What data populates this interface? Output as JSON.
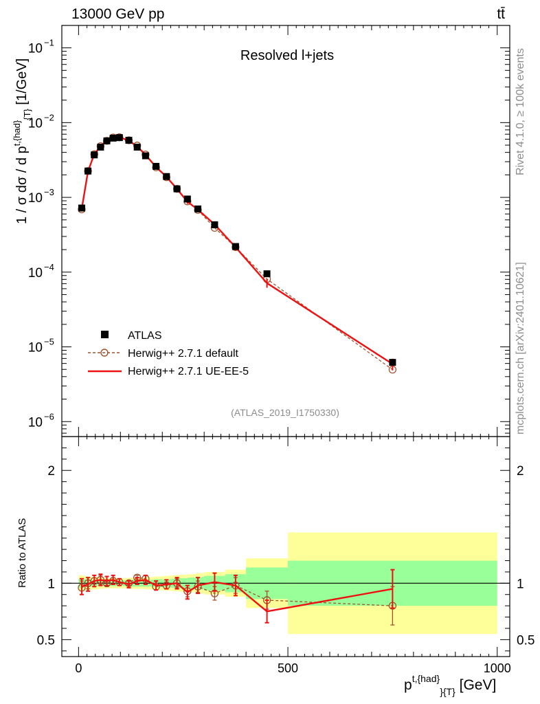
{
  "header": {
    "energy": "13000 GeV pp",
    "process": "tt̄"
  },
  "side": {
    "rivet": "Rivet 4.1.0, ≥ 100k events",
    "mcplots": "mcplots.cern.ch [arXiv:2401.10621]"
  },
  "chart_data": {
    "type": "scatter",
    "title": "Resolved l+jets",
    "analysis_id": "(ATLAS_2019_I1750330)",
    "xlabel": "p^{t,{had}}_{T} [GeV]",
    "ylabel_main": "1 / σ dσ / d p^{t,{had}}_{T} [1/GeV]",
    "ylabel_ratio": "Ratio to ATLAS",
    "xlim": [
      -40,
      1030
    ],
    "ylim_main_log10": [
      -6.2,
      -0.7
    ],
    "ylim_ratio": [
      0.35,
      2.3
    ],
    "x_ticks": [
      "0",
      "500",
      "1000"
    ],
    "y_ticks_main": [
      "10^{-1}",
      "10^{-2}",
      "10^{-3}",
      "10^{-4}",
      "10^{-5}",
      "10^{-6}"
    ],
    "y_ticks_ratio": [
      "0.5",
      "1",
      "2"
    ],
    "legend": [
      "ATLAS",
      "Herwig++ 2.7.1 default",
      "Herwig++ 2.7.1 UE-EE-5"
    ],
    "bin_edges": [
      0,
      15,
      30,
      45,
      60,
      75,
      90,
      105,
      120,
      140,
      160,
      180,
      200,
      220,
      240,
      260,
      280,
      300,
      350,
      400,
      500,
      1000
    ],
    "x": [
      7.5,
      22.5,
      37.5,
      52.5,
      67.5,
      82.5,
      97.5,
      112.5,
      130,
      150,
      170,
      190,
      210,
      230,
      250,
      270,
      290,
      325,
      375,
      450,
      750
    ],
    "band_inner": [
      0.04,
      0.035,
      0.03,
      0.025,
      0.025,
      0.025,
      0.025,
      0.025,
      0.03,
      0.03,
      0.03,
      0.035,
      0.035,
      0.04,
      0.045,
      0.05,
      0.055,
      0.065,
      0.08,
      0.14,
      0.2
    ],
    "band_outer": [
      0.07,
      0.06,
      0.055,
      0.05,
      0.045,
      0.045,
      0.045,
      0.045,
      0.05,
      0.05,
      0.055,
      0.06,
      0.065,
      0.07,
      0.075,
      0.08,
      0.09,
      0.1,
      0.12,
      0.22,
      0.45
    ],
    "series": [
      {
        "name": "ATLAS",
        "color": "#000000",
        "values": [
          0.00072,
          0.00225,
          0.0037,
          0.0047,
          0.0057,
          0.0062,
          0.0063,
          0.0058,
          0.0047,
          0.0036,
          0.0026,
          0.0019,
          0.0013,
          0.00095,
          0.0007,
          0.00043,
          0.00022,
          9.5e-05,
          6.2e-06
        ]
      },
      {
        "name": "Herwig++ 2.7.1 default",
        "color": "#a0522d",
        "ratio": [
          0.96,
          1.0,
          1.02,
          1.03,
          1.0,
          1.02,
          1.01,
          1.0,
          1.05,
          1.04,
          0.97,
          0.98,
          1.0,
          0.93,
          0.97,
          0.91,
          0.98,
          0.85,
          0.8
        ],
        "ratio_err": [
          0.06,
          0.05,
          0.05,
          0.04,
          0.03,
          0.03,
          0.03,
          0.02,
          0.02,
          0.03,
          0.03,
          0.03,
          0.04,
          0.05,
          0.05,
          0.06,
          0.07,
          0.08,
          0.17
        ]
      },
      {
        "name": "Herwig++ 2.7.1 UE-EE-5",
        "color": "#ee1111",
        "ratio": [
          0.97,
          0.99,
          1.02,
          1.03,
          1.02,
          1.03,
          1.01,
          0.99,
          1.02,
          1.03,
          0.98,
          0.99,
          1.0,
          0.92,
          0.98,
          1.01,
          0.98,
          0.75,
          0.95
        ],
        "ratio_err": [
          0.07,
          0.06,
          0.05,
          0.05,
          0.04,
          0.04,
          0.03,
          0.03,
          0.03,
          0.04,
          0.04,
          0.04,
          0.05,
          0.06,
          0.07,
          0.08,
          0.09,
          0.1,
          0.17
        ]
      }
    ],
    "bin_x": [
      7.5,
      22.5,
      37.5,
      52.5,
      67.5,
      82.5,
      97.5,
      120,
      140,
      160,
      185,
      210,
      235,
      260,
      285,
      325,
      375,
      450,
      750
    ]
  }
}
